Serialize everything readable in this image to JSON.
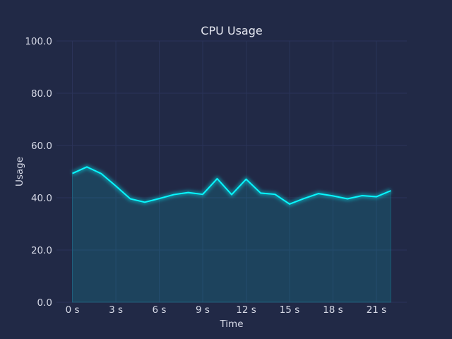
{
  "chart_data": {
    "type": "area",
    "title": "CPU Usage",
    "xlabel": "Time",
    "ylabel": "Usage",
    "x": [
      0,
      1,
      2,
      3,
      4,
      5,
      6,
      7,
      8,
      9,
      10,
      11,
      12,
      13,
      14,
      15,
      16,
      17,
      18,
      19,
      20,
      21,
      22
    ],
    "series": [
      {
        "values": [
          49.3,
          51.8,
          49.2,
          44.5,
          39.6,
          38.3,
          39.7,
          41.2,
          42.0,
          41.3,
          47.3,
          41.2,
          47.1,
          41.8,
          41.3,
          37.6,
          39.7,
          41.6,
          40.7,
          39.6,
          40.8,
          40.4,
          42.7
        ],
        "color": "#08F7FE"
      }
    ],
    "xlim": [
      -1.1,
      23.1
    ],
    "ylim": [
      0,
      100
    ],
    "x_ticks": [
      {
        "value": 0,
        "label": "0 s"
      },
      {
        "value": 3,
        "label": "3 s"
      },
      {
        "value": 6,
        "label": "6 s"
      },
      {
        "value": 9,
        "label": "9 s"
      },
      {
        "value": 12,
        "label": "12 s"
      },
      {
        "value": 15,
        "label": "15 s"
      },
      {
        "value": 18,
        "label": "18 s"
      },
      {
        "value": 21,
        "label": "21 s"
      }
    ],
    "y_ticks": [
      {
        "value": 0,
        "label": "0.0"
      },
      {
        "value": 20,
        "label": "20.0"
      },
      {
        "value": 40,
        "label": "40.0"
      },
      {
        "value": 60,
        "label": "60.0"
      },
      {
        "value": 80,
        "label": "80.0"
      },
      {
        "value": 100,
        "label": "100.0"
      }
    ],
    "grid": true,
    "background": "#212946",
    "grid_color": "#2A3459"
  }
}
